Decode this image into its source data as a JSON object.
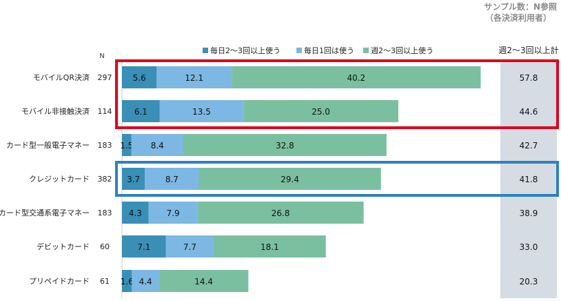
{
  "note": {
    "line1": "サンプル数：N参照",
    "line2": "（各決済利用者）"
  },
  "n_header": "N",
  "total_header": "週2～3回以上計",
  "colors": {
    "daily_multi": "#3a8fb7",
    "daily_once": "#7cb8e3",
    "weekly": "#7bbfa1",
    "total_bg": "#d5dce4",
    "red_box": "#e0001b",
    "blue_box": "#2f80c0"
  },
  "chart_data": {
    "type": "bar",
    "orientation": "horizontal",
    "stacked": true,
    "categories": [
      "モバイルQR決済",
      "モバイル非接触決済",
      "カード型一般電子マネー",
      "クレジットカード",
      "カード型交通系電子マネー",
      "デビットカード",
      "プリペイドカード"
    ],
    "n": [
      "297",
      "114",
      "183",
      "382",
      "183",
      "60",
      "61"
    ],
    "series": [
      {
        "name": "毎日2～3回以上使う",
        "values": [
          5.6,
          6.1,
          1.5,
          3.7,
          4.3,
          7.1,
          1.6
        ]
      },
      {
        "name": "毎日1回は使う",
        "values": [
          12.1,
          13.5,
          8.4,
          8.7,
          7.9,
          7.7,
          4.4
        ]
      },
      {
        "name": "週2～3回以上使う",
        "values": [
          40.2,
          25.0,
          32.8,
          29.4,
          26.8,
          18.1,
          14.4
        ]
      }
    ],
    "totals": [
      57.8,
      44.6,
      42.7,
      41.8,
      38.9,
      33.0,
      20.3
    ],
    "xlim": [
      0,
      60
    ],
    "legend_position": "top",
    "grid": false,
    "highlights": [
      {
        "color": "red",
        "rows": [
          0,
          1
        ]
      },
      {
        "color": "blue",
        "rows": [
          3
        ]
      }
    ]
  }
}
